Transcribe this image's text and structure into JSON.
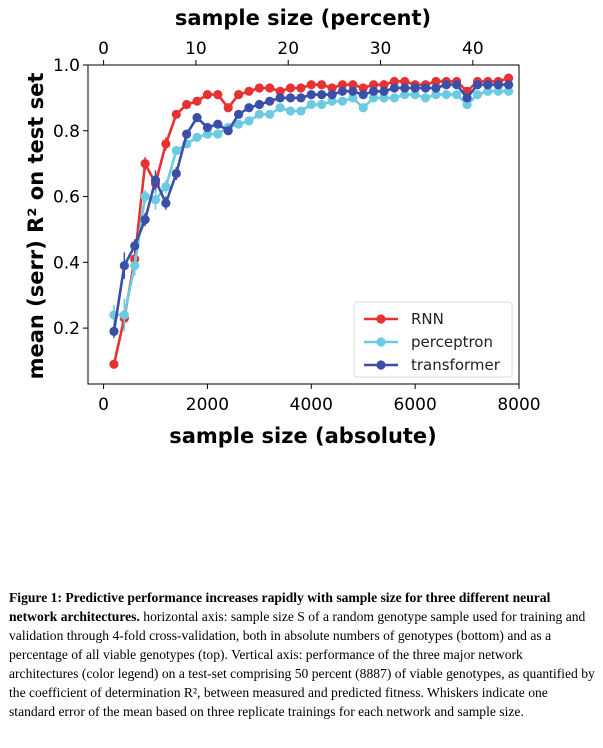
{
  "chart_data": {
    "type": "line",
    "xlabel": "sample size (absolute)",
    "x2label": "sample size (percent)",
    "ylabel": "mean (serr) R² on test set",
    "xlim": [
      -300,
      8000
    ],
    "x2lim": [
      -1.69,
      45.0
    ],
    "ylim": [
      0.03,
      1.0
    ],
    "xticks": [
      0,
      2000,
      4000,
      6000,
      8000
    ],
    "x2ticks": [
      0,
      10,
      20,
      30,
      40
    ],
    "yticks": [
      0.2,
      0.4,
      0.6,
      0.8,
      1.0
    ],
    "ytick_labels": [
      "0.2",
      "0.4",
      "0.6",
      "0.8",
      "1.0"
    ],
    "grid": false,
    "legend_position": "lower-right",
    "x": [
      200,
      400,
      600,
      800,
      1000,
      1200,
      1400,
      1600,
      1800,
      2000,
      2200,
      2400,
      2600,
      2800,
      3000,
      3200,
      3400,
      3600,
      3800,
      4000,
      4200,
      4400,
      4600,
      4800,
      5000,
      5200,
      5400,
      5600,
      5800,
      6000,
      6200,
      6400,
      6600,
      6800,
      7000,
      7200,
      7400,
      7600,
      7800
    ],
    "series": [
      {
        "name": "RNN",
        "color": "#e63232",
        "values": [
          0.09,
          0.23,
          0.41,
          0.7,
          0.64,
          0.76,
          0.85,
          0.88,
          0.89,
          0.91,
          0.91,
          0.87,
          0.91,
          0.92,
          0.93,
          0.93,
          0.92,
          0.93,
          0.93,
          0.94,
          0.94,
          0.93,
          0.94,
          0.94,
          0.93,
          0.94,
          0.94,
          0.95,
          0.95,
          0.94,
          0.94,
          0.95,
          0.95,
          0.95,
          0.92,
          0.95,
          0.95,
          0.95,
          0.96
        ],
        "errors": [
          0.005,
          0.02,
          0.02,
          0.02,
          0.03,
          0.02,
          0.01,
          0.01,
          0.01,
          0.01,
          0.01,
          0.01,
          0.01,
          0.01,
          0.01,
          0.01,
          0.01,
          0.01,
          0.01,
          0.01,
          0.01,
          0.01,
          0.01,
          0.01,
          0.01,
          0.01,
          0.01,
          0.01,
          0.01,
          0.01,
          0.01,
          0.01,
          0.01,
          0.01,
          0.01,
          0.01,
          0.01,
          0.01,
          0.01
        ]
      },
      {
        "name": "perceptron",
        "color": "#6ccbe0",
        "values": [
          0.24,
          0.24,
          0.39,
          0.6,
          0.59,
          0.63,
          0.74,
          0.76,
          0.78,
          0.79,
          0.79,
          0.81,
          0.82,
          0.83,
          0.85,
          0.85,
          0.87,
          0.86,
          0.86,
          0.88,
          0.88,
          0.89,
          0.89,
          0.9,
          0.87,
          0.9,
          0.9,
          0.9,
          0.91,
          0.91,
          0.9,
          0.91,
          0.91,
          0.91,
          0.88,
          0.91,
          0.92,
          0.92,
          0.92
        ],
        "errors": [
          0.03,
          0.05,
          0.03,
          0.02,
          0.03,
          0.02,
          0.01,
          0.01,
          0.01,
          0.01,
          0.01,
          0.01,
          0.01,
          0.01,
          0.01,
          0.01,
          0.01,
          0.01,
          0.01,
          0.01,
          0.01,
          0.01,
          0.01,
          0.01,
          0.01,
          0.01,
          0.01,
          0.01,
          0.01,
          0.01,
          0.01,
          0.01,
          0.01,
          0.01,
          0.01,
          0.01,
          0.01,
          0.01,
          0.01
        ]
      },
      {
        "name": "transformer",
        "color": "#3a4fa8",
        "values": [
          0.19,
          0.39,
          0.45,
          0.53,
          0.65,
          0.58,
          0.67,
          0.79,
          0.84,
          0.81,
          0.82,
          0.8,
          0.85,
          0.87,
          0.88,
          0.89,
          0.9,
          0.9,
          0.9,
          0.91,
          0.91,
          0.91,
          0.92,
          0.92,
          0.91,
          0.92,
          0.92,
          0.93,
          0.93,
          0.93,
          0.93,
          0.93,
          0.94,
          0.94,
          0.9,
          0.94,
          0.94,
          0.94,
          0.94
        ],
        "errors": [
          0.02,
          0.04,
          0.02,
          0.02,
          0.03,
          0.02,
          0.02,
          0.01,
          0.01,
          0.01,
          0.01,
          0.01,
          0.01,
          0.01,
          0.01,
          0.01,
          0.01,
          0.01,
          0.01,
          0.01,
          0.01,
          0.01,
          0.01,
          0.01,
          0.01,
          0.01,
          0.01,
          0.01,
          0.01,
          0.01,
          0.01,
          0.01,
          0.01,
          0.01,
          0.01,
          0.01,
          0.01,
          0.01,
          0.01
        ]
      }
    ]
  },
  "caption": {
    "title": "Figure 1: Predictive performance increases rapidly with sample size for three different neural network architectures.",
    "text": "horizontal axis: sample size S of a random genotype sample used for training and validation through 4-fold cross-validation, both in absolute numbers of genotypes (bottom) and as a percentage of all viable genotypes (top). Vertical axis: performance of the three major network architectures (color legend) on a test-set comprising 50 percent (8887) of viable genotypes, as quantified by the coefficient of determination R², between measured and predicted fitness. Whiskers indicate one standard error of the mean based on three replicate trainings for each network and sample size."
  }
}
